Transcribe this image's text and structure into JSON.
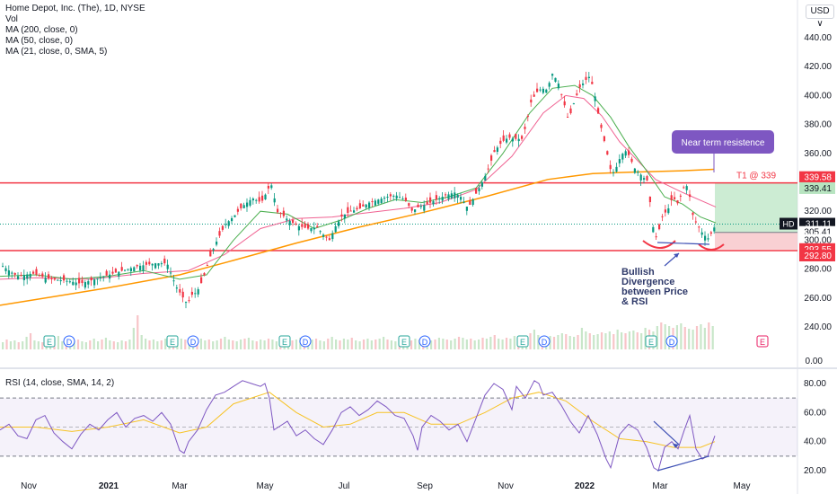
{
  "chart_data": [
    {
      "type": "candlestick",
      "legend": {
        "title": "Home Depot, Inc. (The), 1D, NYSE",
        "lines": [
          "Vol",
          "MA (200, close, 0)",
          "MA (50, close, 0)",
          "MA (21, close, 0, SMA, 5)"
        ]
      },
      "currency": "USD ∨",
      "y_ticks": [
        "440.00",
        "420.00",
        "400.00",
        "380.00",
        "360.00",
        "340.00",
        "320.00",
        "300.00",
        "280.00",
        "260.00",
        "240.00"
      ],
      "ylim": [
        226,
        452
      ],
      "x_ticks": [
        "Nov",
        "2021",
        "Mar",
        "May",
        "Jul",
        "Sep",
        "Nov",
        "2022",
        "Mar",
        "May"
      ],
      "price_path": [
        [
          0,
          283
        ],
        [
          18,
          275
        ],
        [
          35,
          277
        ],
        [
          55,
          273
        ],
        [
          72,
          272
        ],
        [
          82,
          271
        ],
        [
          88,
          270
        ],
        [
          105,
          273
        ],
        [
          130,
          278
        ],
        [
          152,
          282
        ],
        [
          172,
          284
        ],
        [
          185,
          284
        ],
        [
          195,
          268
        ],
        [
          200,
          263
        ],
        [
          205,
          258
        ],
        [
          208,
          256
        ],
        [
          212,
          262
        ],
        [
          218,
          264
        ],
        [
          225,
          273
        ],
        [
          232,
          287
        ],
        [
          240,
          299
        ],
        [
          250,
          311
        ],
        [
          260,
          317
        ],
        [
          270,
          324
        ],
        [
          280,
          329
        ],
        [
          290,
          326
        ],
        [
          298,
          336
        ],
        [
          303,
          339
        ],
        [
          306,
          320
        ],
        [
          312,
          318
        ],
        [
          320,
          314
        ],
        [
          330,
          310
        ],
        [
          342,
          308
        ],
        [
          352,
          309
        ],
        [
          360,
          303
        ],
        [
          366,
          300
        ],
        [
          372,
          309
        ],
        [
          380,
          317
        ],
        [
          390,
          320
        ],
        [
          400,
          322
        ],
        [
          410,
          326
        ],
        [
          420,
          328
        ],
        [
          430,
          330
        ],
        [
          440,
          331
        ],
        [
          450,
          328
        ],
        [
          458,
          320
        ],
        [
          465,
          323
        ],
        [
          475,
          325
        ],
        [
          485,
          328
        ],
        [
          495,
          331
        ],
        [
          505,
          333
        ],
        [
          512,
          330
        ],
        [
          520,
          322
        ],
        [
          528,
          331
        ],
        [
          535,
          339
        ],
        [
          542,
          348
        ],
        [
          550,
          362
        ],
        [
          558,
          368
        ],
        [
          565,
          371
        ],
        [
          572,
          370
        ],
        [
          580,
          370
        ],
        [
          585,
          380
        ],
        [
          590,
          395
        ],
        [
          596,
          402
        ],
        [
          602,
          405
        ],
        [
          608,
          404
        ],
        [
          614,
          415
        ],
        [
          620,
          410
        ],
        [
          626,
          397
        ],
        [
          632,
          383
        ],
        [
          638,
          395
        ],
        [
          644,
          405
        ],
        [
          650,
          410
        ],
        [
          655,
          413
        ],
        [
          660,
          405
        ],
        [
          666,
          384
        ],
        [
          672,
          368
        ],
        [
          676,
          357
        ],
        [
          680,
          345
        ],
        [
          685,
          350
        ],
        [
          690,
          358
        ],
        [
          695,
          362
        ],
        [
          700,
          358
        ],
        [
          705,
          350
        ],
        [
          710,
          347
        ],
        [
          716,
          343
        ],
        [
          720,
          341
        ],
        [
          724,
          320
        ],
        [
          728,
          300
        ],
        [
          732,
          305
        ],
        [
          737,
          318
        ],
        [
          742,
          320
        ],
        [
          748,
          330
        ],
        [
          754,
          325
        ],
        [
          760,
          336
        ],
        [
          765,
          338
        ],
        [
          770,
          318
        ],
        [
          776,
          310
        ],
        [
          782,
          304
        ],
        [
          788,
          301
        ],
        [
          792,
          306
        ],
        [
          796,
          311
        ]
      ],
      "ma200": [
        [
          0,
          255
        ],
        [
          60,
          261
        ],
        [
          120,
          267
        ],
        [
          200,
          276
        ],
        [
          260,
          286
        ],
        [
          330,
          298
        ],
        [
          400,
          309
        ],
        [
          470,
          319
        ],
        [
          540,
          330
        ],
        [
          610,
          342
        ],
        [
          660,
          346
        ],
        [
          700,
          347
        ],
        [
          760,
          348
        ],
        [
          795,
          349
        ]
      ],
      "ma50": [
        [
          0,
          273
        ],
        [
          40,
          274
        ],
        [
          100,
          273
        ],
        [
          160,
          277
        ],
        [
          210,
          279
        ],
        [
          250,
          290
        ],
        [
          290,
          308
        ],
        [
          330,
          315
        ],
        [
          370,
          316
        ],
        [
          410,
          319
        ],
        [
          450,
          322
        ],
        [
          490,
          326
        ],
        [
          530,
          335
        ],
        [
          570,
          358
        ],
        [
          605,
          388
        ],
        [
          630,
          400
        ],
        [
          650,
          398
        ],
        [
          670,
          386
        ],
        [
          690,
          368
        ],
        [
          710,
          355
        ],
        [
          730,
          342
        ],
        [
          760,
          333
        ],
        [
          797,
          323
        ]
      ],
      "ma21": [
        [
          0,
          275
        ],
        [
          40,
          276
        ],
        [
          80,
          273
        ],
        [
          120,
          275
        ],
        [
          160,
          279
        ],
        [
          200,
          273
        ],
        [
          230,
          276
        ],
        [
          260,
          300
        ],
        [
          290,
          320
        ],
        [
          320,
          318
        ],
        [
          350,
          308
        ],
        [
          380,
          314
        ],
        [
          410,
          322
        ],
        [
          440,
          328
        ],
        [
          470,
          326
        ],
        [
          500,
          330
        ],
        [
          530,
          336
        ],
        [
          560,
          360
        ],
        [
          590,
          388
        ],
        [
          615,
          405
        ],
        [
          640,
          407
        ],
        [
          660,
          400
        ],
        [
          680,
          385
        ],
        [
          700,
          365
        ],
        [
          720,
          348
        ],
        [
          740,
          330
        ],
        [
          760,
          325
        ],
        [
          780,
          316
        ],
        [
          797,
          312
        ]
      ],
      "volume_profile": [
        8,
        11,
        9,
        10,
        8,
        9,
        14,
        18,
        10,
        9,
        8,
        9,
        10,
        12,
        15,
        9,
        8,
        9,
        10,
        11,
        9,
        8,
        10,
        12,
        9,
        11,
        13,
        10,
        9,
        8,
        10,
        9,
        11,
        24,
        38,
        16,
        12,
        10,
        11,
        9,
        10,
        12,
        13,
        11,
        10,
        12,
        11,
        10,
        9,
        11,
        12,
        10,
        11,
        9,
        10,
        12,
        14,
        11,
        10,
        9,
        11,
        12,
        13,
        10,
        9,
        11,
        10,
        12,
        11,
        9,
        10,
        11,
        12,
        10,
        11,
        13,
        10,
        9,
        11,
        12,
        10,
        9,
        12,
        14,
        11,
        10,
        12,
        11,
        13,
        10,
        9,
        11,
        12,
        10,
        11,
        12,
        14,
        11,
        10,
        9,
        12,
        13,
        11,
        10,
        12,
        11,
        14,
        12,
        10,
        11,
        13,
        12,
        11,
        10,
        12,
        14,
        13,
        11,
        12,
        10,
        11,
        13,
        12,
        14,
        16,
        12,
        11,
        13,
        12,
        15,
        14,
        12,
        13,
        18,
        22,
        16,
        14,
        13,
        15,
        14,
        16,
        18,
        17,
        15,
        14,
        16,
        24,
        20,
        18,
        16,
        17,
        19,
        18,
        20,
        17,
        22,
        19,
        18,
        20,
        21,
        19,
        18,
        24,
        22,
        20,
        26,
        30,
        28,
        26,
        24,
        27,
        29,
        25,
        23,
        22,
        26,
        28,
        24,
        30,
        26
      ],
      "earnings_markers": [
        {
          "label": "E",
          "value": "earnings"
        },
        {
          "label": "D",
          "value": "dividend"
        }
      ],
      "earnings_x": [
        55,
        77,
        192,
        215,
        317,
        340,
        450,
        473,
        582,
        606,
        725,
        748,
        849
      ],
      "earnings_type": [
        "E",
        "D",
        "E",
        "D",
        "E",
        "D",
        "E",
        "D",
        "E",
        "D",
        "E",
        "D",
        "E"
      ],
      "levels": {
        "resistance": 339.58,
        "support": 292.8,
        "hd": 311.11,
        "target": 339.41,
        "entry": 305.41,
        "stop": 293.55
      },
      "price_labels": [
        {
          "text": "339.58",
          "color": "#f23645",
          "kind": "red"
        },
        {
          "text": "339.41",
          "color": "#089981",
          "kind": "green"
        },
        {
          "text": "311.11",
          "color": "#131722",
          "kind": "dark"
        },
        {
          "text": "305.41",
          "color": "#131722",
          "kind": "light"
        },
        {
          "text": "300.00",
          "color": "#131722",
          "kind": "plain"
        },
        {
          "text": "293.55",
          "color": "#f23645",
          "kind": "red"
        },
        {
          "text": "292.80",
          "color": "#f23645",
          "kind": "red"
        }
      ],
      "hd_tag": "HD",
      "target_label": "T1 @ 339",
      "callout": "Near term resistence",
      "annotation": [
        "Bullish",
        "Divergence",
        "between Price",
        "& RSI"
      ]
    },
    {
      "type": "line",
      "legend": "RSI (14, close, SMA, 14, 2)",
      "y_ticks": [
        "80.00",
        "60.00",
        "40.00",
        "20.00"
      ],
      "vol_tick": "0.00",
      "ylim": [
        16,
        88
      ],
      "bands": {
        "upper": 70,
        "middle": 50,
        "lower": 30
      },
      "rsi": [
        [
          0,
          48
        ],
        [
          10,
          52
        ],
        [
          20,
          44
        ],
        [
          30,
          42
        ],
        [
          40,
          55
        ],
        [
          50,
          58
        ],
        [
          60,
          46
        ],
        [
          70,
          40
        ],
        [
          80,
          35
        ],
        [
          90,
          45
        ],
        [
          100,
          52
        ],
        [
          110,
          48
        ],
        [
          120,
          55
        ],
        [
          130,
          60
        ],
        [
          140,
          50
        ],
        [
          150,
          56
        ],
        [
          160,
          58
        ],
        [
          170,
          54
        ],
        [
          180,
          60
        ],
        [
          190,
          52
        ],
        [
          200,
          34
        ],
        [
          205,
          32
        ],
        [
          210,
          40
        ],
        [
          220,
          48
        ],
        [
          230,
          62
        ],
        [
          240,
          72
        ],
        [
          250,
          74
        ],
        [
          260,
          78
        ],
        [
          270,
          82
        ],
        [
          280,
          80
        ],
        [
          290,
          78
        ],
        [
          295,
          80
        ],
        [
          300,
          70
        ],
        [
          305,
          48
        ],
        [
          310,
          50
        ],
        [
          320,
          54
        ],
        [
          330,
          44
        ],
        [
          340,
          48
        ],
        [
          350,
          42
        ],
        [
          360,
          38
        ],
        [
          370,
          48
        ],
        [
          380,
          60
        ],
        [
          390,
          64
        ],
        [
          400,
          58
        ],
        [
          410,
          62
        ],
        [
          420,
          68
        ],
        [
          430,
          64
        ],
        [
          440,
          58
        ],
        [
          450,
          56
        ],
        [
          460,
          44
        ],
        [
          465,
          34
        ],
        [
          470,
          50
        ],
        [
          480,
          58
        ],
        [
          490,
          54
        ],
        [
          500,
          48
        ],
        [
          510,
          52
        ],
        [
          520,
          40
        ],
        [
          530,
          56
        ],
        [
          540,
          72
        ],
        [
          550,
          80
        ],
        [
          560,
          76
        ],
        [
          570,
          62
        ],
        [
          575,
          78
        ],
        [
          585,
          70
        ],
        [
          595,
          82
        ],
        [
          600,
          80
        ],
        [
          605,
          72
        ],
        [
          615,
          74
        ],
        [
          625,
          65
        ],
        [
          635,
          54
        ],
        [
          645,
          46
        ],
        [
          655,
          58
        ],
        [
          665,
          45
        ],
        [
          675,
          28
        ],
        [
          680,
          22
        ],
        [
          690,
          45
        ],
        [
          700,
          52
        ],
        [
          710,
          48
        ],
        [
          720,
          36
        ],
        [
          728,
          22
        ],
        [
          733,
          20
        ],
        [
          740,
          36
        ],
        [
          748,
          40
        ],
        [
          755,
          35
        ],
        [
          762,
          48
        ],
        [
          768,
          58
        ],
        [
          775,
          35
        ],
        [
          782,
          28
        ],
        [
          788,
          30
        ],
        [
          796,
          44
        ]
      ],
      "rsi_ma": [
        [
          0,
          50
        ],
        [
          40,
          50
        ],
        [
          80,
          47
        ],
        [
          120,
          50
        ],
        [
          160,
          55
        ],
        [
          200,
          46
        ],
        [
          230,
          50
        ],
        [
          260,
          66
        ],
        [
          300,
          74
        ],
        [
          330,
          60
        ],
        [
          360,
          50
        ],
        [
          390,
          52
        ],
        [
          420,
          60
        ],
        [
          450,
          60
        ],
        [
          480,
          52
        ],
        [
          510,
          52
        ],
        [
          540,
          60
        ],
        [
          570,
          70
        ],
        [
          600,
          74
        ],
        [
          630,
          68
        ],
        [
          660,
          54
        ],
        [
          690,
          42
        ],
        [
          720,
          40
        ],
        [
          750,
          36
        ],
        [
          780,
          36
        ],
        [
          796,
          40
        ]
      ],
      "colors": {
        "rsi": "#7e57c2",
        "ma": "#f7c325"
      }
    }
  ]
}
